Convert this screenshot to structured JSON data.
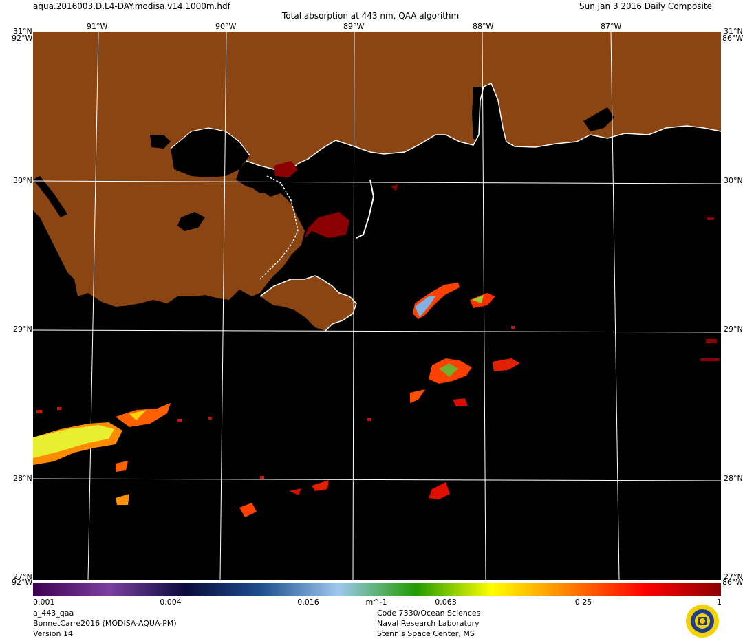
{
  "header": {
    "filename": "aqua.2016003.D.L4-DAY.modisa.v14.1000m.hdf",
    "title": "Total absorption at 443 nm, QAA algorithm",
    "date": "Sun Jan  3 2016 Daily Composite"
  },
  "map": {
    "lat_labels": [
      "31°N",
      "30°N",
      "29°N",
      "28°N"
    ],
    "lon_labels": [
      "91°W",
      "90°W",
      "89°W",
      "88°W",
      "87°W"
    ],
    "corner_labels": {
      "top_left": "92°W",
      "top_right": "86°W",
      "bottom_left": "92°W",
      "bottom_right": "86°W",
      "bottom_left_lat": "27°N",
      "bottom_right_lat": "27°N"
    },
    "colors": {
      "land": "#8b4513",
      "water": "#000000",
      "coast": "#ffffff",
      "grid": "#ffffff"
    }
  },
  "colorbar": {
    "unit": "m^-1",
    "scale": "log",
    "range": [
      0.001,
      1
    ],
    "tick_labels": [
      "0.001",
      "0.004",
      "0.016",
      "0.063",
      "0.25",
      "1"
    ],
    "stops": [
      "#3d0050",
      "#7b3fa0",
      "#0a0a3a",
      "#1f4f8f",
      "#9fc8ee",
      "#1e9b00",
      "#ffff00",
      "#ff8000",
      "#ff0000",
      "#8b0000"
    ]
  },
  "footer": {
    "product": "a_443_qaa",
    "dataset": "BonnetCarre2016 (MODISA-AQUA-PM)",
    "version": "Version 14",
    "org_line1": "Code 7330/Ocean Sciences",
    "org_line2": "Naval Research Laboratory",
    "org_line3": "Stennis Space Center, MS"
  }
}
